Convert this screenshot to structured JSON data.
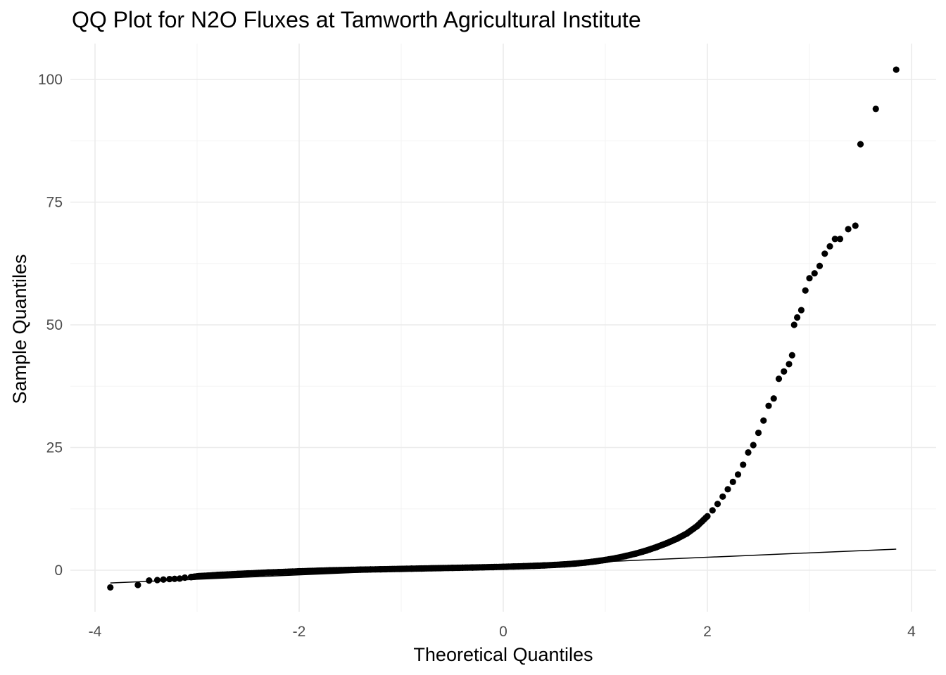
{
  "chart_data": {
    "type": "scatter",
    "title": "QQ Plot for N2O Fluxes at Tamworth Agricultural Institute",
    "xlabel": "Theoretical Quantiles",
    "ylabel": "Sample Quantiles",
    "xlim": [
      -4.0,
      4.1
    ],
    "ylim": [
      -9,
      107
    ],
    "xticks": [
      -4,
      -2,
      0,
      2,
      4
    ],
    "xtick_labels": [
      "-4",
      "-2",
      "0",
      "2",
      "4"
    ],
    "yticks": [
      0,
      25,
      50,
      75,
      100
    ],
    "ytick_labels": [
      "0",
      "25",
      "50",
      "75",
      "100"
    ],
    "grid": true,
    "reference_line": {
      "x": [
        -3.85,
        3.85
      ],
      "y": [
        -2.6,
        4.3
      ]
    },
    "points": [
      [
        -3.85,
        -3.5
      ],
      [
        -3.58,
        -3.0
      ],
      [
        -3.47,
        -2.1
      ],
      [
        -3.39,
        -2.0
      ],
      [
        -3.33,
        -1.9
      ],
      [
        -3.27,
        -1.8
      ],
      [
        -3.22,
        -1.75
      ],
      [
        -3.17,
        -1.7
      ],
      [
        -3.12,
        -1.5
      ],
      [
        -3.06,
        -1.4
      ],
      [
        -3.02,
        -1.3
      ],
      [
        -2.98,
        -1.2
      ],
      [
        -2.9,
        -1.1
      ],
      [
        -2.8,
        -0.95
      ],
      [
        -2.7,
        -0.85
      ],
      [
        -2.6,
        -0.75
      ],
      [
        -2.5,
        -0.65
      ],
      [
        -2.4,
        -0.55
      ],
      [
        -2.3,
        -0.45
      ],
      [
        -2.2,
        -0.38
      ],
      [
        -2.1,
        -0.3
      ],
      [
        -2.0,
        -0.22
      ],
      [
        -1.9,
        -0.15
      ],
      [
        -1.8,
        -0.08
      ],
      [
        -1.7,
        -0.02
      ],
      [
        -1.6,
        0.03
      ],
      [
        -1.5,
        0.08
      ],
      [
        -1.4,
        0.12
      ],
      [
        -1.3,
        0.16
      ],
      [
        -1.2,
        0.2
      ],
      [
        -1.1,
        0.24
      ],
      [
        -1.0,
        0.28
      ],
      [
        -0.9,
        0.32
      ],
      [
        -0.8,
        0.36
      ],
      [
        -0.7,
        0.4
      ],
      [
        -0.6,
        0.44
      ],
      [
        -0.5,
        0.48
      ],
      [
        -0.4,
        0.52
      ],
      [
        -0.3,
        0.56
      ],
      [
        -0.2,
        0.6
      ],
      [
        -0.1,
        0.65
      ],
      [
        0.0,
        0.7
      ],
      [
        0.1,
        0.76
      ],
      [
        0.2,
        0.82
      ],
      [
        0.3,
        0.9
      ],
      [
        0.4,
        0.98
      ],
      [
        0.5,
        1.08
      ],
      [
        0.6,
        1.2
      ],
      [
        0.7,
        1.35
      ],
      [
        0.8,
        1.55
      ],
      [
        0.9,
        1.8
      ],
      [
        1.0,
        2.1
      ],
      [
        1.1,
        2.45
      ],
      [
        1.2,
        2.9
      ],
      [
        1.3,
        3.4
      ],
      [
        1.4,
        4.0
      ],
      [
        1.5,
        4.7
      ],
      [
        1.6,
        5.5
      ],
      [
        1.7,
        6.4
      ],
      [
        1.8,
        7.5
      ],
      [
        1.9,
        9.0
      ],
      [
        2.0,
        11.0
      ],
      [
        2.05,
        12.2
      ],
      [
        2.1,
        13.5
      ],
      [
        2.15,
        15.0
      ],
      [
        2.2,
        16.5
      ],
      [
        2.25,
        18.0
      ],
      [
        2.3,
        19.5
      ],
      [
        2.35,
        21.5
      ],
      [
        2.4,
        24.0
      ],
      [
        2.45,
        25.5
      ],
      [
        2.5,
        28.0
      ],
      [
        2.55,
        30.5
      ],
      [
        2.6,
        33.5
      ],
      [
        2.65,
        35.0
      ],
      [
        2.7,
        39.0
      ],
      [
        2.75,
        40.5
      ],
      [
        2.8,
        42.0
      ],
      [
        2.83,
        43.8
      ],
      [
        2.85,
        50.0
      ],
      [
        2.88,
        51.5
      ],
      [
        2.92,
        53.0
      ],
      [
        2.96,
        57.0
      ],
      [
        3.0,
        59.5
      ],
      [
        3.05,
        60.5
      ],
      [
        3.1,
        62.0
      ],
      [
        3.15,
        64.5
      ],
      [
        3.2,
        66.0
      ],
      [
        3.25,
        67.5
      ],
      [
        3.3,
        67.5
      ],
      [
        3.38,
        69.5
      ],
      [
        3.45,
        70.2
      ],
      [
        3.5,
        86.8
      ],
      [
        3.65,
        94.0
      ],
      [
        3.85,
        102.0
      ]
    ]
  }
}
